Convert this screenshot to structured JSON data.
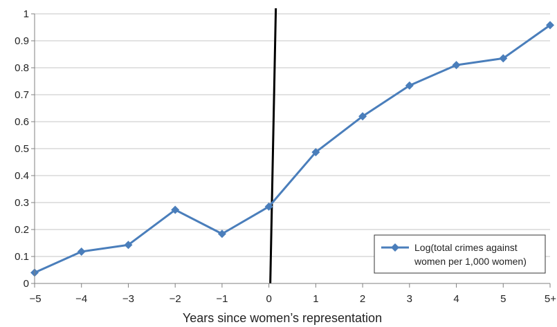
{
  "chart_data": {
    "type": "line",
    "xlabel": "Years since women’s representation",
    "ylabel": "",
    "categories": [
      "−5",
      "−4",
      "−3",
      "−2",
      "−1",
      "0",
      "1",
      "2",
      "3",
      "4",
      "5",
      "5+"
    ],
    "ylim": [
      0,
      1
    ],
    "yticks": [
      "0",
      "0.1",
      "0.2",
      "0.3",
      "0.4",
      "0.5",
      "0.6",
      "0.7",
      "0.8",
      "0.9",
      "1"
    ],
    "grid": "horizontal",
    "legend_position": "bottom-right",
    "series": [
      {
        "name": "Log(total crimes against women per 1,000 women)",
        "legend_lines": [
          "Log(total crimes against",
          "women per 1,000 women)"
        ],
        "values": [
          0.04,
          0.118,
          0.143,
          0.273,
          0.184,
          0.285,
          0.487,
          0.62,
          0.734,
          0.81,
          0.835,
          0.958
        ],
        "color": "#4a7ebb",
        "marker": "diamond"
      }
    ],
    "reference_line": {
      "type": "vertical",
      "at": "0",
      "color": "#000000"
    }
  }
}
